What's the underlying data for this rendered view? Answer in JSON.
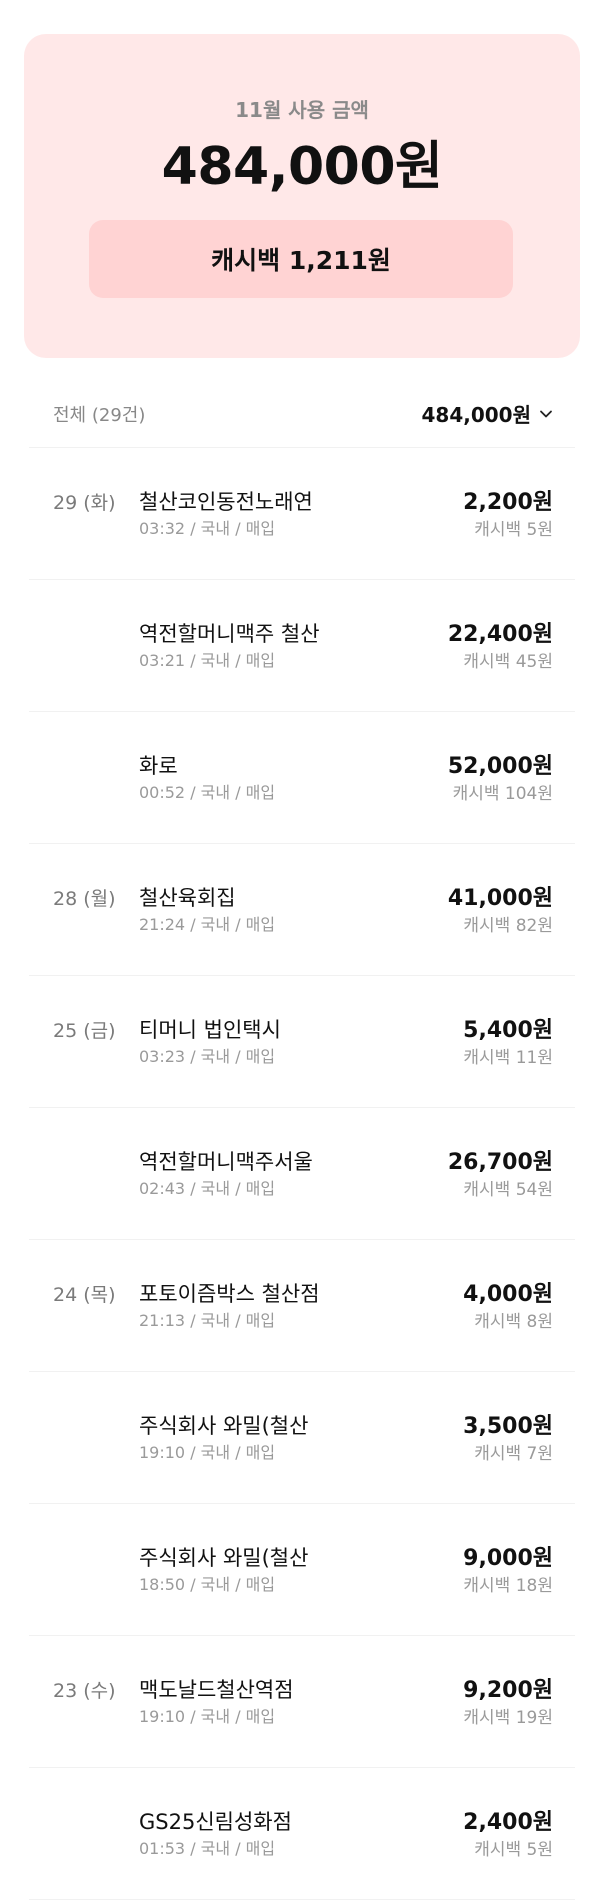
{
  "summary": {
    "label": "11월 사용 금액",
    "amount": "484,000원",
    "cashback": "캐시백 1,211원"
  },
  "list": {
    "count_label": "전체 (29건)",
    "total": "484,000원",
    "rows": [
      {
        "date": "29 (화)",
        "merchant": "철산코인동전노래연",
        "meta": "03:32 / 국내 / 매입",
        "amount": "2,200원",
        "cashback": "캐시백 5원"
      },
      {
        "date": "",
        "merchant": "역전할머니맥주 철산",
        "meta": "03:21 / 국내 / 매입",
        "amount": "22,400원",
        "cashback": "캐시백 45원"
      },
      {
        "date": "",
        "merchant": "화로",
        "meta": "00:52 / 국내 / 매입",
        "amount": "52,000원",
        "cashback": "캐시백 104원"
      },
      {
        "date": "28 (월)",
        "merchant": "철산육회집",
        "meta": "21:24 / 국내 / 매입",
        "amount": "41,000원",
        "cashback": "캐시백 82원"
      },
      {
        "date": "25 (금)",
        "merchant": "티머니 법인택시",
        "meta": "03:23 / 국내 / 매입",
        "amount": "5,400원",
        "cashback": "캐시백 11원"
      },
      {
        "date": "",
        "merchant": "역전할머니맥주서울",
        "meta": "02:43 / 국내 / 매입",
        "amount": "26,700원",
        "cashback": "캐시백 54원"
      },
      {
        "date": "24 (목)",
        "merchant": "포토이즘박스 철산점",
        "meta": "21:13 / 국내 / 매입",
        "amount": "4,000원",
        "cashback": "캐시백 8원"
      },
      {
        "date": "",
        "merchant": "주식회사 와밀(철산",
        "meta": "19:10 / 국내 / 매입",
        "amount": "3,500원",
        "cashback": "캐시백 7원"
      },
      {
        "date": "",
        "merchant": "주식회사 와밀(철산",
        "meta": "18:50 / 국내 / 매입",
        "amount": "9,000원",
        "cashback": "캐시백 18원"
      },
      {
        "date": "23 (수)",
        "merchant": "맥도날드철산역점",
        "meta": "19:10 / 국내 / 매입",
        "amount": "9,200원",
        "cashback": "캐시백 19원"
      },
      {
        "date": "",
        "merchant": "GS25신림성화점",
        "meta": "01:53 / 국내 / 매입",
        "amount": "2,400원",
        "cashback": "캐시백 5원"
      }
    ]
  },
  "colors": {
    "card_bg": "#ffe8e8",
    "pill_bg": "#ffd3d3"
  },
  "icons": {
    "total_dropdown": "chevron-down-icon"
  }
}
